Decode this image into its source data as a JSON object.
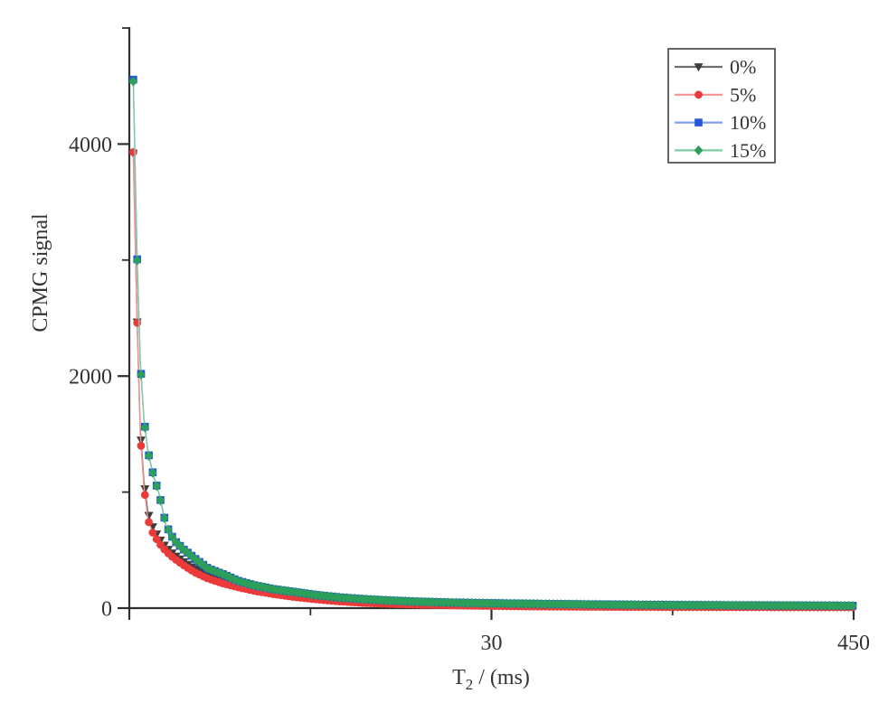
{
  "window": {
    "background": "#ffffff"
  },
  "colors": {
    "axis": "#2f2f2f",
    "text": "#333333",
    "legend_border": "#3f3f3f",
    "legend_background": "#ffffff"
  },
  "chart_data": {
    "type": "line",
    "title": "",
    "ylabel": "CPMG signal",
    "xlabel_parts": {
      "base": "T",
      "sub": "2",
      "rest": " / (ms)"
    },
    "x_scale": "log",
    "xlim": [
      2,
      450
    ],
    "ylim": [
      0,
      5000
    ],
    "x_ticks_major": [
      30,
      450
    ],
    "x_tick_labels": [
      "30",
      "450"
    ],
    "x_ticks_minor": [
      7.75,
      116.2
    ],
    "x_edge_tick": 2,
    "y_ticks_major": [
      0,
      2000,
      4000
    ],
    "y_tick_labels": [
      "0",
      "2000",
      "4000"
    ],
    "y_ticks_minor": [
      1000,
      3000,
      5000
    ],
    "grid": false,
    "legend_position": "top-right",
    "t_ms": [
      2.06,
      2.12,
      2.17,
      2.23,
      2.3,
      2.39,
      2.5,
      2.63,
      2.79,
      3.0,
      3.25,
      3.6,
      4.0,
      4.5,
      5.1,
      5.9,
      6.9,
      8.1,
      9.6,
      11.5,
      14,
      17,
      21,
      26,
      33,
      43,
      60,
      90,
      150,
      260,
      450
    ],
    "series": [
      {
        "name": "0%",
        "marker": "triangle-down",
        "color": "#3d3d3d",
        "line_color": "#6f6f6f",
        "values": [
          3920,
          2480,
          1550,
          1100,
          820,
          690,
          600,
          525,
          462,
          400,
          340,
          285,
          242,
          203,
          168,
          138,
          111,
          88,
          70,
          56,
          45,
          37,
          31,
          26,
          22,
          18,
          15,
          13,
          11,
          10,
          9
        ]
      },
      {
        "name": "5%",
        "marker": "circle",
        "color": "#ea3a3a",
        "line_color": "#f59191",
        "values": [
          3930,
          2474,
          1500,
          1050,
          760,
          640,
          560,
          490,
          430,
          370,
          310,
          255,
          215,
          180,
          148,
          120,
          95,
          75,
          58,
          45,
          36,
          30,
          25,
          21,
          17,
          14,
          12,
          10,
          9,
          8,
          8
        ]
      },
      {
        "name": "10%",
        "marker": "square",
        "color": "#2457d9",
        "line_color": "#7fa0ea",
        "values": [
          4555,
          3020,
          2130,
          1638,
          1348,
          1154,
          984,
          718,
          587,
          507,
          432,
          342,
          296,
          236,
          196,
          163,
          139,
          113,
          93,
          78,
          66,
          57,
          50,
          45,
          41,
          37,
          33,
          29,
          26,
          23,
          21
        ]
      },
      {
        "name": "15%",
        "marker": "diamond",
        "color": "#2ca05b",
        "line_color": "#7fcaa2",
        "values": [
          4540,
          3010,
          2123,
          1631,
          1343,
          1150,
          980,
          715,
          585,
          505,
          430,
          340,
          295,
          235,
          195,
          162,
          138,
          112,
          92,
          77,
          65,
          56,
          49,
          44,
          40,
          36,
          32,
          28,
          25,
          22,
          20
        ]
      }
    ]
  }
}
